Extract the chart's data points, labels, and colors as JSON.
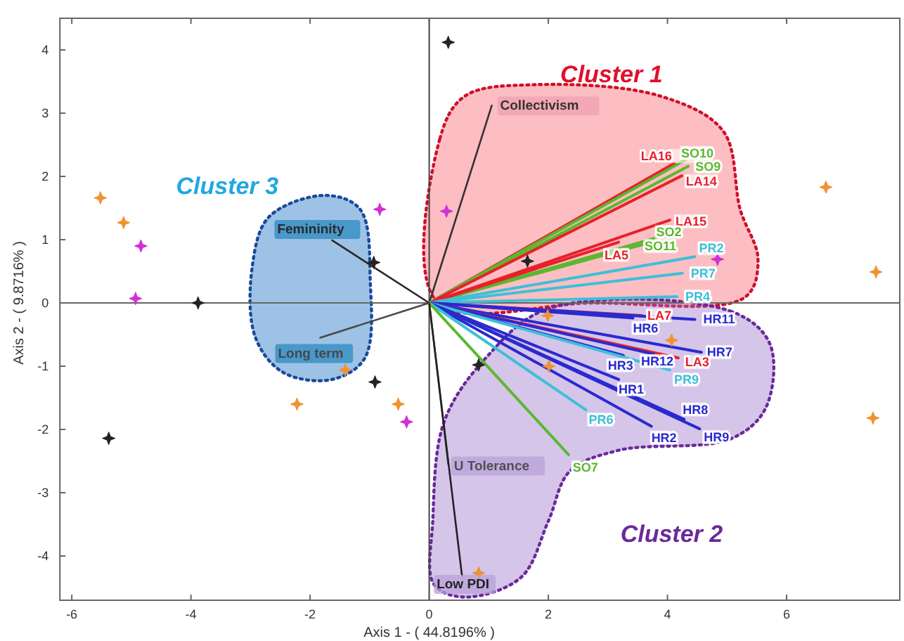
{
  "chart_data": {
    "type": "scatter",
    "xlabel": "Axis 1 - ( 44.8196% )",
    "ylabel": "Axis 2 - ( 9.8716% )",
    "xlim": [
      -6.2,
      7.9
    ],
    "ylim": [
      -4.7,
      4.5
    ],
    "xticks": [
      -6,
      -4,
      -2,
      0,
      2,
      4,
      6
    ],
    "yticks": [
      -4,
      -3,
      -2,
      -1,
      0,
      1,
      2,
      3,
      4
    ],
    "grid": false,
    "ref_lines": [
      {
        "axis": "x",
        "value": 0,
        "color": "#444444"
      },
      {
        "axis": "y",
        "value": 0,
        "color": "#666666"
      }
    ],
    "annotations": [
      "Cluster 1",
      "Cluster 2",
      "Cluster 3"
    ],
    "series": [
      {
        "type": "line",
        "name": "Collectivism",
        "color": "#333333",
        "x": [
          0,
          1.05
        ],
        "values": [
          0,
          3.12
        ]
      },
      {
        "type": "line",
        "name": "LA16",
        "color": "#e8202a",
        "x": [
          0,
          4.12
        ],
        "values": [
          0,
          2.21
        ]
      },
      {
        "type": "line",
        "name": "SO10",
        "color": "#5ab82e",
        "x": [
          0,
          4.3
        ],
        "values": [
          0,
          2.26
        ]
      },
      {
        "type": "line",
        "name": "SO9",
        "color": "#5ab82e",
        "x": [
          0,
          4.35
        ],
        "values": [
          0,
          2.16
        ]
      },
      {
        "type": "line",
        "name": "LA14",
        "color": "#e8202a",
        "x": [
          0,
          4.24
        ],
        "values": [
          0,
          2.01
        ]
      },
      {
        "type": "line",
        "name": "LA15",
        "color": "#e8202a",
        "x": [
          0,
          4.04
        ],
        "values": [
          0,
          1.31
        ]
      },
      {
        "type": "line",
        "name": "SO2",
        "color": "#5ab82e",
        "x": [
          0,
          3.81
        ],
        "values": [
          0,
          1.03
        ]
      },
      {
        "type": "line",
        "name": "SO11",
        "color": "#5ab82e",
        "x": [
          0,
          3.57
        ],
        "values": [
          0,
          0.92
        ]
      },
      {
        "type": "line",
        "name": "LA5",
        "color": "#e8202a",
        "x": [
          0,
          3.18
        ],
        "values": [
          0,
          0.96
        ]
      },
      {
        "type": "line",
        "name": "PR2",
        "color": "#3cc0d8",
        "x": [
          0,
          4.46
        ],
        "values": [
          0,
          0.73
        ]
      },
      {
        "type": "line",
        "name": "PR7",
        "color": "#3cc0d8",
        "x": [
          0,
          4.25
        ],
        "values": [
          0,
          0.47
        ]
      },
      {
        "type": "line",
        "name": "PR4",
        "color": "#3cc0d8",
        "x": [
          0,
          4.16
        ],
        "values": [
          0,
          0.1
        ]
      },
      {
        "type": "line",
        "name": "LA7",
        "color": "#e8202a",
        "x": [
          0,
          3.57
        ],
        "values": [
          0,
          -0.2
        ]
      },
      {
        "type": "line",
        "name": "HR6",
        "color": "#2a2ad0",
        "x": [
          0,
          3.42
        ],
        "values": [
          0,
          -0.24
        ]
      },
      {
        "type": "line",
        "name": "HR11",
        "color": "#2a2ad0",
        "x": [
          0,
          4.46
        ],
        "values": [
          0,
          -0.26
        ]
      },
      {
        "type": "line",
        "name": "HR7",
        "color": "#2a2ad0",
        "x": [
          0,
          4.57
        ],
        "values": [
          0,
          -0.78
        ]
      },
      {
        "type": "line",
        "name": "LA3",
        "color": "#e8202a",
        "x": [
          0,
          4.18
        ],
        "values": [
          0,
          -0.87
        ]
      },
      {
        "type": "line",
        "name": "HR12",
        "color": "#2a2ad0",
        "x": [
          0,
          3.77
        ],
        "values": [
          0,
          -0.81
        ]
      },
      {
        "type": "line",
        "name": "HR3",
        "color": "#2a2ad0",
        "x": [
          0,
          3.26
        ],
        "values": [
          0,
          -0.83
        ]
      },
      {
        "type": "line",
        "name": "PR9",
        "color": "#3cc0d8",
        "x": [
          0,
          4.04
        ],
        "values": [
          0,
          -1.06
        ]
      },
      {
        "type": "line",
        "name": "HR1",
        "color": "#2a2ad0",
        "x": [
          0,
          3.18
        ],
        "values": [
          0,
          -1.21
        ]
      },
      {
        "type": "line",
        "name": "HR8",
        "color": "#2a2ad0",
        "x": [
          0,
          4.28
        ],
        "values": [
          0,
          -1.84
        ]
      },
      {
        "type": "line",
        "name": "HR9",
        "color": "#2a2ad0",
        "x": [
          0,
          4.54
        ],
        "values": [
          0,
          -1.99
        ]
      },
      {
        "type": "line",
        "name": "HR2",
        "color": "#2a2ad0",
        "x": [
          0,
          3.73
        ],
        "values": [
          0,
          -1.95
        ]
      },
      {
        "type": "line",
        "name": "PR6",
        "color": "#3cc0d8",
        "x": [
          0,
          2.63
        ],
        "values": [
          0,
          -1.69
        ]
      },
      {
        "type": "line",
        "name": "SO7",
        "color": "#5ab82e",
        "x": [
          0,
          2.34
        ],
        "values": [
          0,
          -2.4
        ]
      },
      {
        "type": "line",
        "name": "U Tolerance",
        "color": "#505050",
        "x": [
          0,
          0.32
        ],
        "values": [
          0,
          -2.55
        ]
      },
      {
        "type": "line",
        "name": "Low PDI",
        "color": "#222222",
        "x": [
          0,
          0.55
        ],
        "values": [
          0,
          -4.31
        ]
      },
      {
        "type": "line",
        "name": "Femininity",
        "color": "#2a2a2a",
        "x": [
          0,
          -1.63
        ],
        "values": [
          0,
          0.99
        ]
      },
      {
        "type": "line",
        "name": "Long term",
        "color": "#484848",
        "x": [
          0,
          -1.83
        ],
        "values": [
          0,
          -0.55
        ]
      },
      {
        "marker": "star",
        "color": "#222222",
        "x": [
          -3.88,
          -5.38,
          -0.93,
          -0.91,
          0.32,
          1.65,
          0.83
        ],
        "values": [
          0,
          -2.14,
          0.64,
          -1.25,
          4.12,
          0.66,
          -0.98
        ]
      },
      {
        "marker": "star",
        "color": "#f0922e",
        "x": [
          -5.52,
          -5.13,
          -2.22,
          -1.41,
          -0.52,
          0.83,
          6.66,
          7.5,
          1.99,
          4.07,
          2.01,
          7.45
        ],
        "values": [
          1.66,
          1.27,
          -1.6,
          -1.06,
          -1.6,
          -4.27,
          1.83,
          0.49,
          -0.2,
          -0.59,
          -1.0,
          -1.82
        ]
      },
      {
        "marker": "star",
        "color": "#d030d8",
        "x": [
          -4.84,
          -4.93,
          -0.83,
          -0.38,
          0.29,
          4.84
        ],
        "values": [
          0.9,
          0.07,
          1.48,
          -1.88,
          1.45,
          0.69
        ]
      }
    ]
  }
}
